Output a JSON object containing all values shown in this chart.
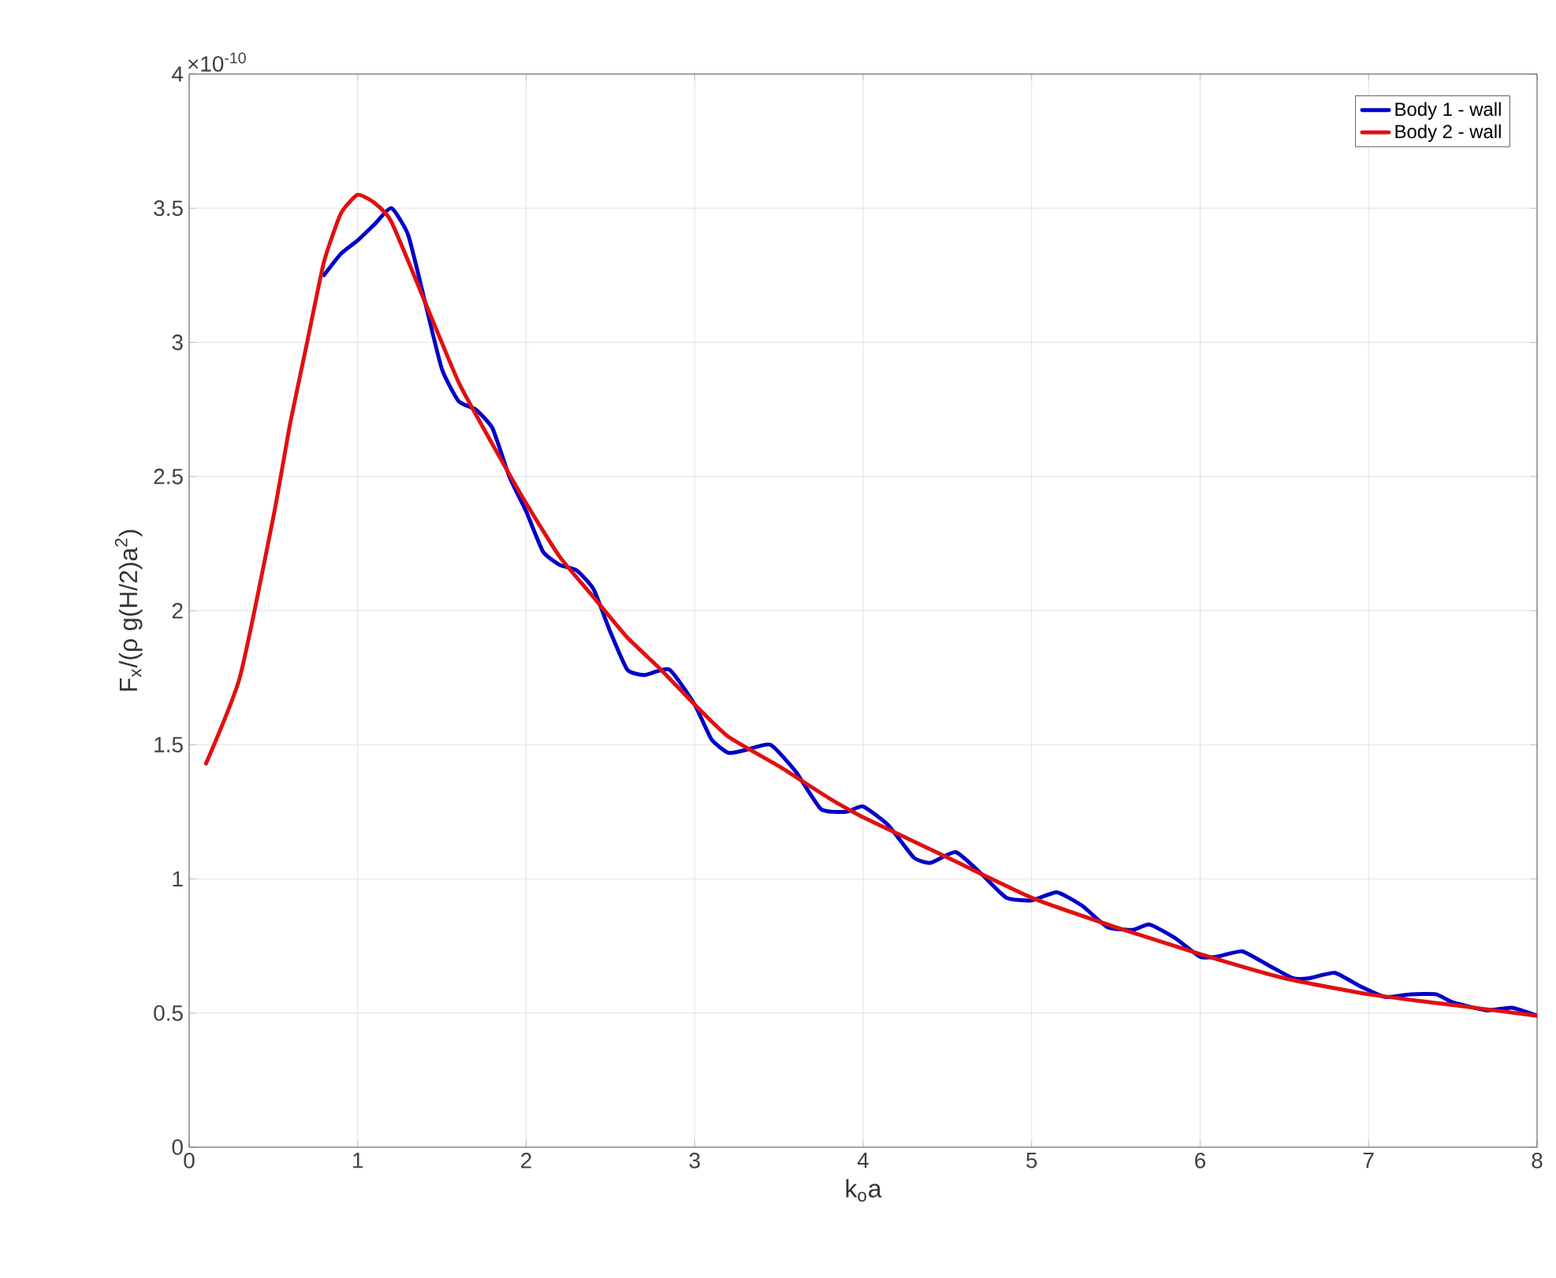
{
  "chart_data": {
    "type": "line",
    "xlabel": "k$_{o}$a",
    "ylabel": "F$_{x}$/(ρ g(H/2)a$^{2}$)",
    "annotations": [
      "×10$^{-10}$"
    ],
    "xlim": [
      0,
      8
    ],
    "ylim": [
      0,
      4
    ],
    "xticks": [
      0,
      1,
      2,
      3,
      4,
      5,
      6,
      7,
      8
    ],
    "yticks": [
      0,
      0.5,
      1,
      1.5,
      2,
      2.5,
      3,
      3.5,
      4
    ],
    "grid": true,
    "legend": "top right",
    "line_style": "solid",
    "series": [
      {
        "name": "Body 1 - wall",
        "color": "#0000c8",
        "x": [
          0.8,
          0.9,
          1.0,
          1.1,
          1.2,
          1.3,
          1.4,
          1.5,
          1.6,
          1.7,
          1.8,
          1.9,
          2.0,
          2.1,
          2.2,
          2.3,
          2.4,
          2.5,
          2.6,
          2.7,
          2.85,
          3.0,
          3.1,
          3.2,
          3.3,
          3.45,
          3.6,
          3.75,
          3.9,
          4.0,
          4.15,
          4.3,
          4.4,
          4.55,
          4.7,
          4.85,
          5.0,
          5.15,
          5.3,
          5.45,
          5.6,
          5.7,
          5.85,
          6.0,
          6.1,
          6.25,
          6.4,
          6.55,
          6.65,
          6.8,
          6.95,
          7.1,
          7.25,
          7.4,
          7.5,
          7.7,
          7.85,
          8.0
        ],
        "values": [
          3.25,
          3.33,
          3.38,
          3.44,
          3.5,
          3.4,
          3.15,
          2.9,
          2.78,
          2.75,
          2.68,
          2.5,
          2.37,
          2.22,
          2.17,
          2.15,
          2.08,
          1.92,
          1.78,
          1.76,
          1.78,
          1.65,
          1.52,
          1.47,
          1.48,
          1.5,
          1.4,
          1.26,
          1.25,
          1.27,
          1.2,
          1.08,
          1.06,
          1.1,
          1.02,
          0.93,
          0.92,
          0.95,
          0.9,
          0.82,
          0.81,
          0.83,
          0.78,
          0.71,
          0.71,
          0.73,
          0.68,
          0.63,
          0.63,
          0.65,
          0.6,
          0.56,
          0.57,
          0.57,
          0.54,
          0.51,
          0.52,
          0.49
        ]
      },
      {
        "name": "Body 2 - wall",
        "color": "#e01010",
        "x": [
          0.1,
          0.3,
          0.5,
          0.6,
          0.7,
          0.8,
          0.9,
          1.0,
          1.1,
          1.2,
          1.4,
          1.6,
          1.8,
          2.0,
          2.2,
          2.4,
          2.6,
          2.8,
          3.0,
          3.2,
          3.5,
          3.8,
          4.0,
          4.5,
          5.0,
          5.5,
          6.0,
          6.5,
          7.0,
          7.5,
          8.0
        ],
        "values": [
          1.43,
          1.75,
          2.35,
          2.7,
          3.0,
          3.3,
          3.48,
          3.55,
          3.52,
          3.45,
          3.15,
          2.85,
          2.62,
          2.4,
          2.2,
          2.05,
          1.9,
          1.78,
          1.65,
          1.53,
          1.42,
          1.3,
          1.23,
          1.08,
          0.93,
          0.82,
          0.72,
          0.63,
          0.57,
          0.53,
          0.49
        ]
      }
    ]
  }
}
